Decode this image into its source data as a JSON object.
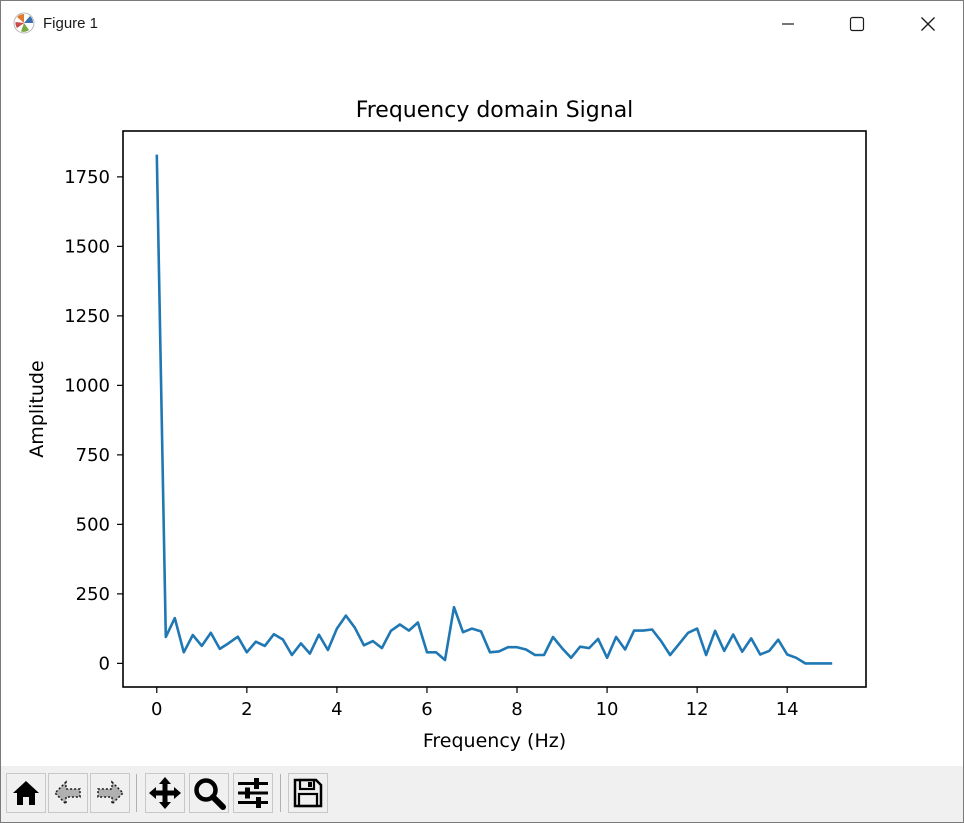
{
  "window": {
    "title": "Figure 1",
    "controls": [
      "minimize-icon",
      "maximize-icon",
      "close-icon"
    ]
  },
  "toolbar": {
    "buttons": [
      {
        "name": "home-button",
        "icon": "home-icon",
        "label": "Home"
      },
      {
        "name": "back-button",
        "icon": "arrow-left-icon",
        "label": "Back"
      },
      {
        "name": "forward-button",
        "icon": "arrow-right-icon",
        "label": "Forward"
      },
      {
        "name": "pan-button",
        "icon": "move-icon",
        "label": "Pan"
      },
      {
        "name": "zoom-button",
        "icon": "magnifier-icon",
        "label": "Zoom"
      },
      {
        "name": "configure-subplots-button",
        "icon": "sliders-icon",
        "label": "Subplots"
      },
      {
        "name": "save-button",
        "icon": "floppy-disk-icon",
        "label": "Save"
      }
    ]
  },
  "chart_data": {
    "type": "line",
    "title": "Frequency domain Signal",
    "xlabel": "Frequency (Hz)",
    "ylabel": "Amplitude",
    "xlim": [
      -0.75,
      15.75
    ],
    "ylim": [
      -85,
      1915
    ],
    "xticks": [
      0,
      2,
      4,
      6,
      8,
      10,
      12,
      14
    ],
    "yticks": [
      0,
      250,
      500,
      750,
      1000,
      1250,
      1500,
      1750
    ],
    "grid": false,
    "line_color": "#1f77b4",
    "series": [
      {
        "x": [
          0,
          0.2,
          0.4,
          0.6,
          0.8,
          1.0,
          1.2,
          1.4,
          1.6,
          1.8,
          2.0,
          2.2,
          2.4,
          2.6,
          2.8,
          3.0,
          3.2,
          3.4,
          3.6,
          3.8,
          4.0,
          4.2,
          4.4,
          4.6,
          4.8,
          5.0,
          5.2,
          5.4,
          5.6,
          5.8,
          6.0,
          6.2,
          6.4,
          6.6,
          6.8,
          7.0,
          7.2,
          7.4,
          7.6,
          7.8,
          8.0,
          8.2,
          8.4,
          8.6,
          8.8,
          9.0,
          9.2,
          9.4,
          9.6,
          9.8,
          10.0,
          10.2,
          10.4,
          10.6,
          10.8,
          11.0,
          11.2,
          11.4,
          11.6,
          11.8,
          12.0,
          12.2,
          12.4,
          12.6,
          12.8,
          13.0,
          13.2,
          13.4,
          13.6,
          13.8,
          14.0,
          14.2,
          14.4,
          14.6,
          14.8,
          15.0
        ],
        "y": [
          1830,
          95,
          163,
          40,
          102,
          63,
          110,
          52,
          73,
          96,
          40,
          78,
          63,
          105,
          86,
          30,
          72,
          35,
          103,
          48,
          125,
          172,
          128,
          65,
          80,
          55,
          117,
          140,
          118,
          147,
          40,
          40,
          12,
          202,
          112,
          125,
          115,
          40,
          43,
          58,
          58,
          50,
          30,
          30,
          95,
          55,
          20,
          60,
          55,
          88,
          20,
          95,
          50,
          118,
          118,
          122,
          80,
          30,
          70,
          110,
          125,
          30,
          117,
          45,
          104,
          42,
          90,
          32,
          45,
          85,
          32,
          20,
          0,
          0,
          0,
          0
        ]
      }
    ]
  }
}
